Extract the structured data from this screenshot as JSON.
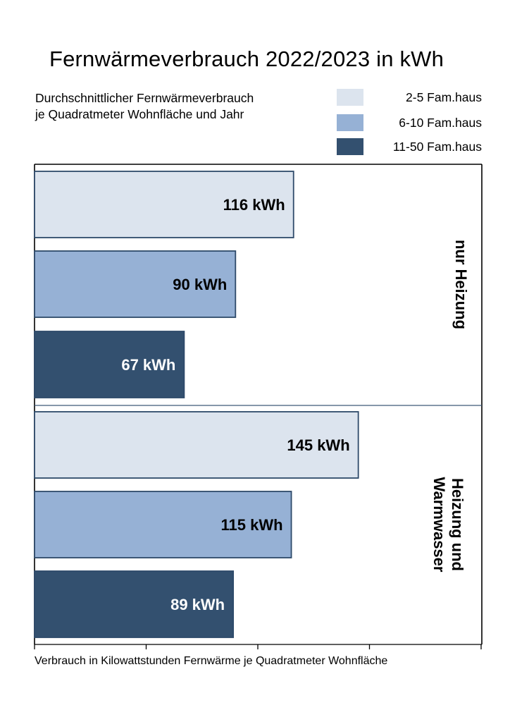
{
  "chart_data": {
    "type": "bar",
    "orientation": "horizontal",
    "title": "Fernwärmeverbrauch 2022/2023 in kWh",
    "subtitle": "Durchschnittlicher Fernwärmeverbrauch\nje Quadratmeter Wohnfläche und Jahr",
    "xlabel": "Verbrauch in Kilowattstunden Fernwärme je Quadratmeter Wohnfläche",
    "ylabel": "",
    "xlim": [
      0,
      200
    ],
    "x_ticks_labeled": false,
    "grid": false,
    "legend_position": "top-right",
    "groups": [
      {
        "name": "nur Heizung",
        "bars": [
          {
            "series": "2-5 Fam.haus",
            "value": 116,
            "label": "116 kWh"
          },
          {
            "series": "6-10 Fam.haus",
            "value": 90,
            "label": "90 kWh"
          },
          {
            "series": "11-50 Fam.haus",
            "value": 67,
            "label": "67 kWh"
          }
        ]
      },
      {
        "name": "Heizung und\nWarmwasser",
        "bars": [
          {
            "series": "2-5 Fam.haus",
            "value": 145,
            "label": "145 kWh"
          },
          {
            "series": "6-10 Fam.haus",
            "value": 115,
            "label": "115 kWh"
          },
          {
            "series": "11-50 Fam.haus",
            "value": 89,
            "label": "89 kWh"
          }
        ]
      }
    ],
    "series": [
      {
        "name": "2-5 Fam.haus",
        "color": "#dce4ee",
        "label_color": "#000000"
      },
      {
        "name": "6-10 Fam.haus",
        "color": "#96b1d5",
        "label_color": "#000000"
      },
      {
        "name": "11-50 Fam.haus",
        "color": "#33506f",
        "label_color": "#ffffff"
      }
    ],
    "bar_outline_color": "#2e4a6a"
  }
}
